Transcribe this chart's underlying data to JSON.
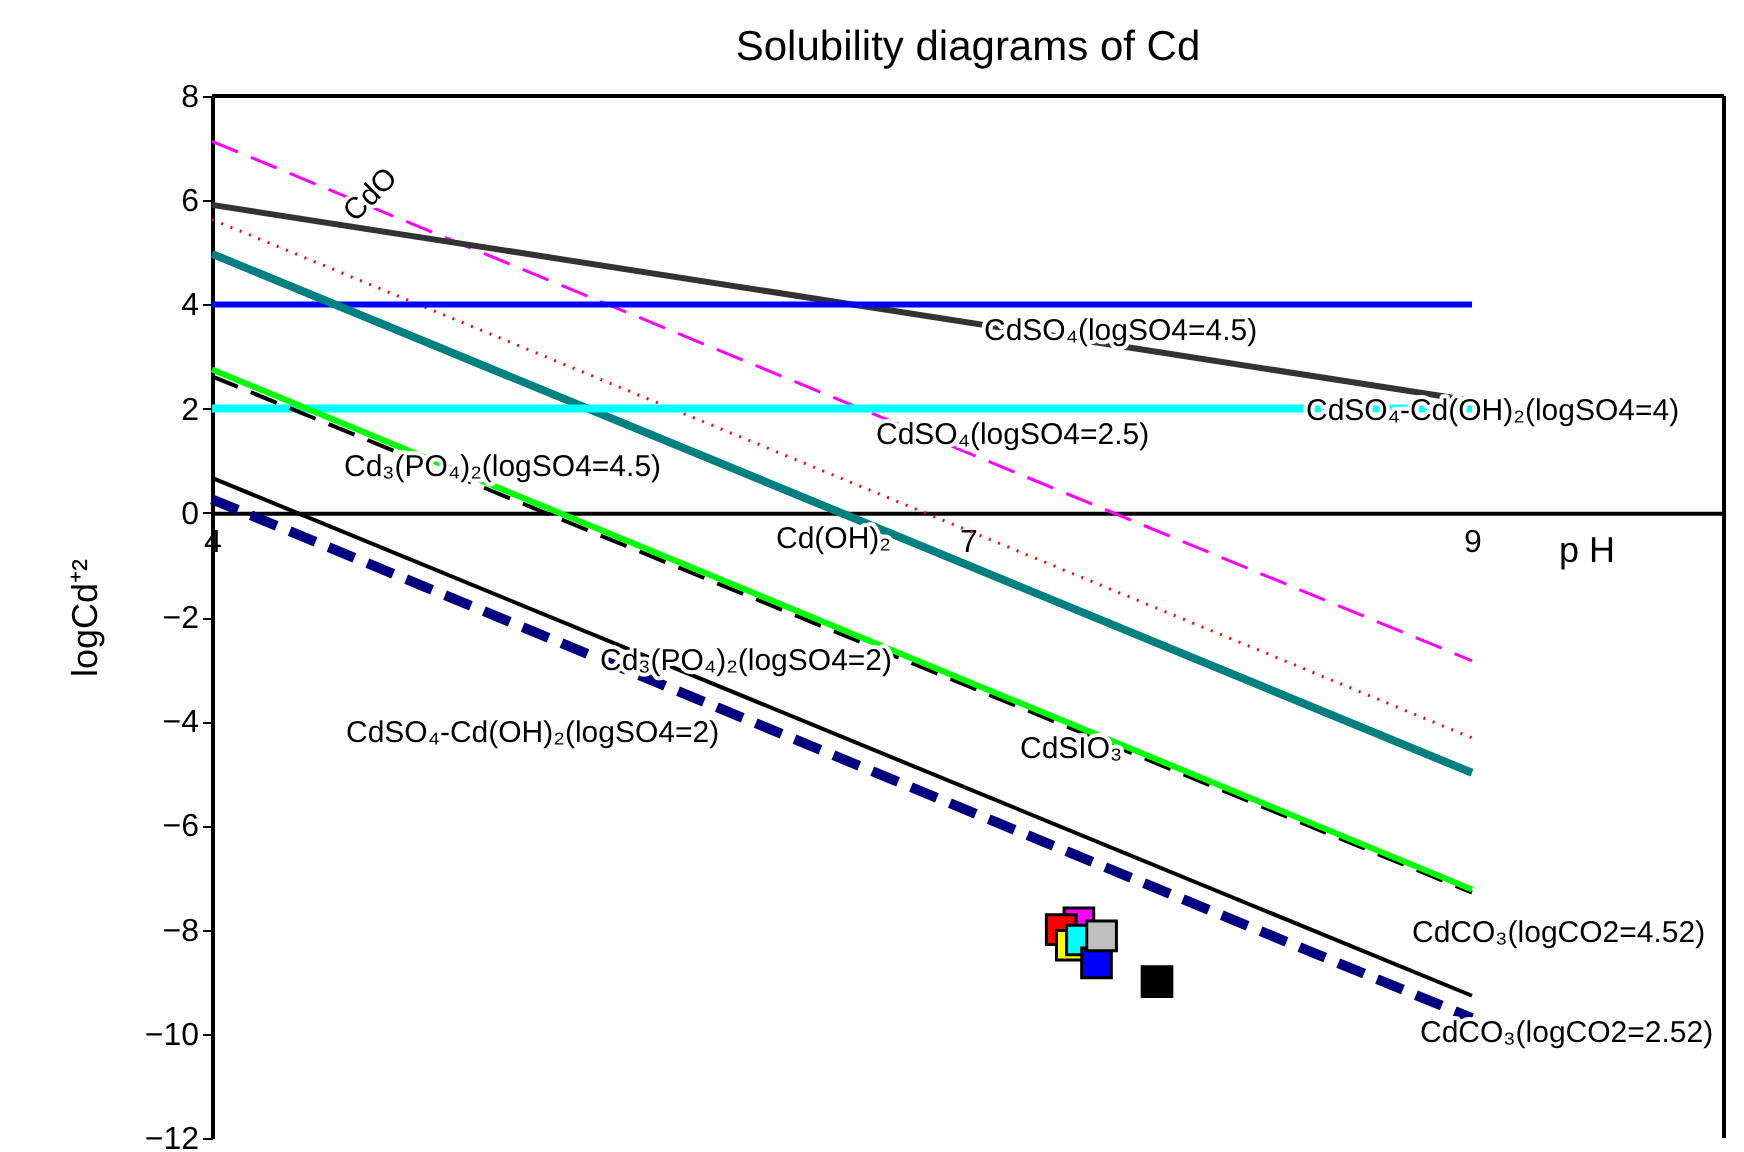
{
  "chart_data": {
    "type": "line",
    "title": "Solubility diagrams of Cd",
    "xlabel": "p H",
    "ylabel": "logCd⁺²",
    "xlim": [
      4,
      10
    ],
    "xticks": [
      4,
      7,
      9
    ],
    "ylim": [
      -12,
      8
    ],
    "yticks": [
      -12,
      -10,
      -8,
      -6,
      -4,
      -2,
      0,
      2,
      4,
      6,
      8
    ],
    "grid": false,
    "marker": "none",
    "series": [
      {
        "color": "#ff00ff",
        "line_style": "dashed",
        "x": [
          4,
          9
        ],
        "values": [
          7.13,
          -2.84
        ]
      },
      {
        "color": "#333333",
        "line_style": "solid",
        "x": [
          4,
          9
        ],
        "values": [
          5.91,
          2.15
        ]
      },
      {
        "color": "#ff0000",
        "line_style": "dotted",
        "x": [
          4,
          9
        ],
        "values": [
          5.63,
          -4.32
        ]
      },
      {
        "color": "#0000ff",
        "line_style": "solid",
        "x": [
          4,
          9
        ],
        "values": [
          4,
          4
        ]
      },
      {
        "color": "#008080",
        "line_style": "solid",
        "x": [
          4,
          9
        ],
        "values": [
          4.97,
          -4.99
        ]
      },
      {
        "color": "#00ffff",
        "line_style": "solid",
        "x": [
          4,
          9
        ],
        "values": [
          2,
          2
        ]
      },
      {
        "color": "#000000",
        "line_style": "dashed",
        "x": [
          4,
          9
        ],
        "values": [
          2.62,
          -7.29
        ]
      },
      {
        "color": "#00ff00",
        "line_style": "solid",
        "x": [
          4,
          9
        ],
        "values": [
          2.75,
          -7.23
        ]
      },
      {
        "color": "#000000",
        "line_style": "solid",
        "x": [
          4,
          9
        ],
        "values": [
          0.67,
          -9.27
        ]
      },
      {
        "color": "#000080",
        "line_style": "dashed",
        "x": [
          4,
          9
        ],
        "values": [
          0.26,
          -9.7
        ]
      },
      {
        "type": "scatter",
        "marker": "square",
        "x": [
          7.44,
          7.37,
          7.41,
          7.45,
          7.51,
          7.53,
          7.75
        ],
        "values": [
          -7.87,
          -8.0,
          -8.3,
          -8.2,
          -8.64,
          -8.12,
          -9.0
        ],
        "colors": [
          "#ff00ff",
          "#ff0000",
          "#ffff00",
          "#00ffff",
          "#0000ff",
          "#c0c0c0",
          "#000000"
        ]
      }
    ],
    "annotations": [
      "CdO",
      "CdSO₄(logSO4=4.5)",
      "CdSO₄-Cd(OH)₂(logSO4=4)",
      "CdSO₄(logSO4=2.5)",
      "Cd₃(PO₄)₂(logSO4=4.5)",
      "Cd(OH)₂",
      "Cd₃(PO₄)₂(logSO4=2)",
      "CdSO₄-Cd(OH)₂(logSO4=2)",
      "CdSIO₃",
      "CdCO₃(logCO2=4.52)",
      "CdCO₃(logCO2=2.52)"
    ]
  }
}
